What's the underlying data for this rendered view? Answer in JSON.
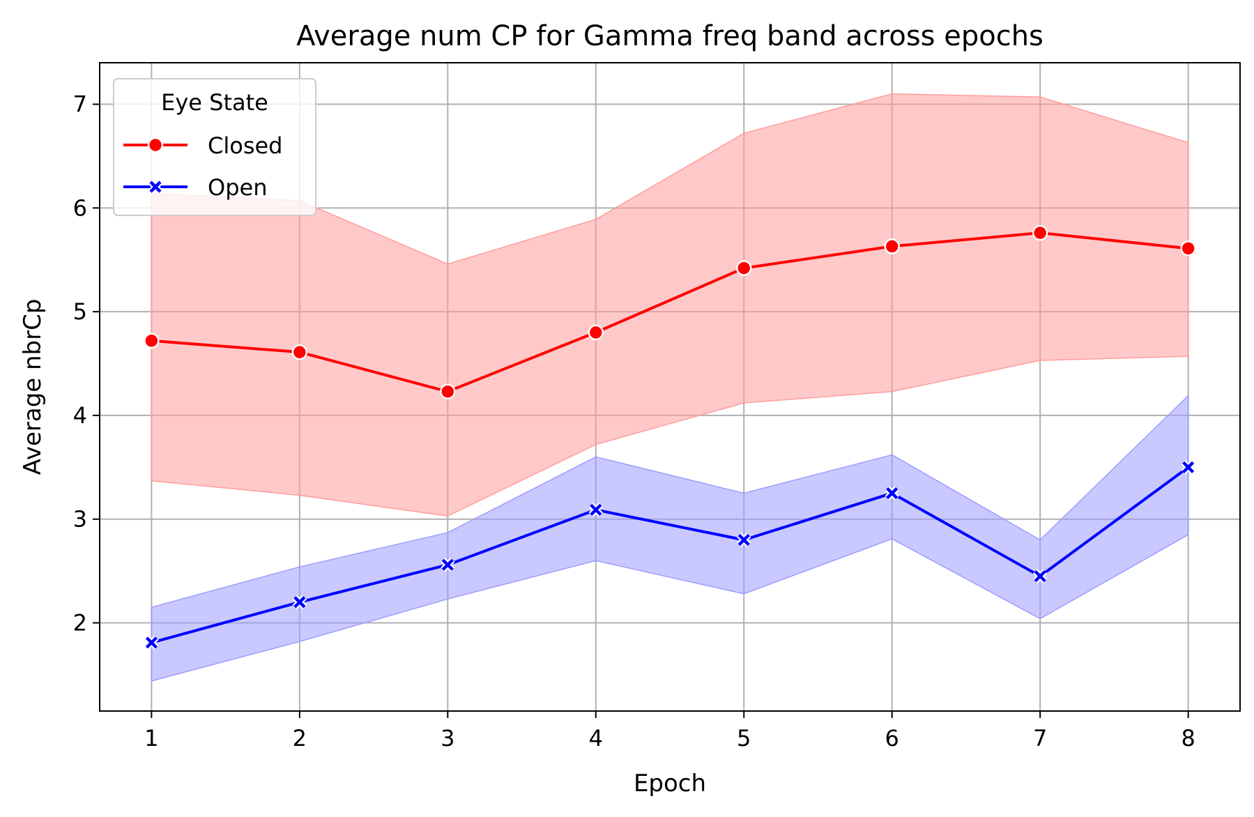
{
  "chart_data": {
    "type": "line",
    "title": "Average num CP for Gamma freq band across epochs",
    "xlabel": "Epoch",
    "ylabel": "Average nbrCp",
    "x": [
      1,
      2,
      3,
      4,
      5,
      6,
      7,
      8
    ],
    "xlim": [
      0.65,
      8.35
    ],
    "ylim": [
      1.15,
      7.4
    ],
    "xticks": [
      1,
      2,
      3,
      4,
      5,
      6,
      7,
      8
    ],
    "yticks": [
      2,
      3,
      4,
      5,
      6,
      7
    ],
    "grid": true,
    "legend": {
      "title": "Eye State",
      "placement": "top-left"
    },
    "series": [
      {
        "name": "Closed",
        "color": "#ff0000",
        "band_color": "#ff9c9c",
        "marker": "circle",
        "values": [
          4.72,
          4.61,
          4.23,
          4.8,
          5.42,
          5.63,
          5.76,
          5.61
        ],
        "ci_upper": [
          6.14,
          6.07,
          5.46,
          5.89,
          6.72,
          7.1,
          7.07,
          6.63
        ],
        "ci_lower": [
          3.37,
          3.23,
          3.03,
          3.72,
          4.12,
          4.23,
          4.53,
          4.57
        ]
      },
      {
        "name": "Open",
        "color": "#0000ff",
        "band_color": "#9c9cff",
        "marker": "x",
        "values": [
          1.81,
          2.2,
          2.56,
          3.09,
          2.8,
          3.25,
          2.45,
          3.5
        ],
        "ci_upper": [
          2.15,
          2.54,
          2.87,
          3.6,
          3.25,
          3.62,
          2.8,
          4.19
        ],
        "ci_lower": [
          1.44,
          1.82,
          2.23,
          2.6,
          2.28,
          2.81,
          2.04,
          2.85
        ]
      }
    ]
  }
}
